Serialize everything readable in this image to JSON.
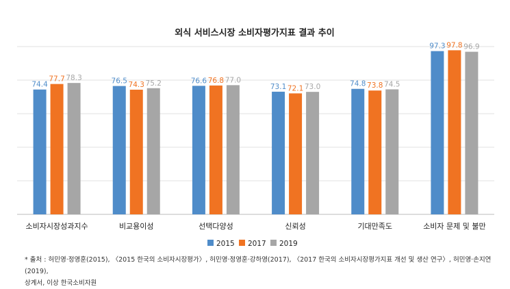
{
  "chart_data": {
    "type": "bar",
    "title": "외식 서비스시장 소비자평가지표 결과 추이",
    "categories": [
      "소비자시장성과지수",
      "비교용이성",
      "선택다양성",
      "신뢰성",
      "기대만족도",
      "소비자 문제 및 불만"
    ],
    "series": [
      {
        "name": "2015",
        "color": "#4f8cc9",
        "values": [
          74.4,
          76.5,
          76.6,
          73.1,
          74.8,
          97.3
        ]
      },
      {
        "name": "2017",
        "color": "#f07322",
        "values": [
          77.7,
          74.3,
          76.8,
          72.1,
          73.8,
          97.8
        ]
      },
      {
        "name": "2019",
        "color": "#a6a6a6",
        "values": [
          78.3,
          75.2,
          77.0,
          73.0,
          74.5,
          96.9
        ]
      }
    ],
    "ylim": [
      0,
      100
    ],
    "gridlines": true,
    "legend_position": "bottom",
    "data_labels": true
  },
  "source": {
    "line1": "* 출처 : 허민영·정영훈(2015), 〈2015 한국의 소비자시장평가〉, 허민영·정영훈·강하영(2017), 〈2017 한국의 소비자시장평가지표 개선 및 생산 연구〉, 허민영·손지연(2019),",
    "line2": "상계서, 이상 한국소비자원"
  }
}
